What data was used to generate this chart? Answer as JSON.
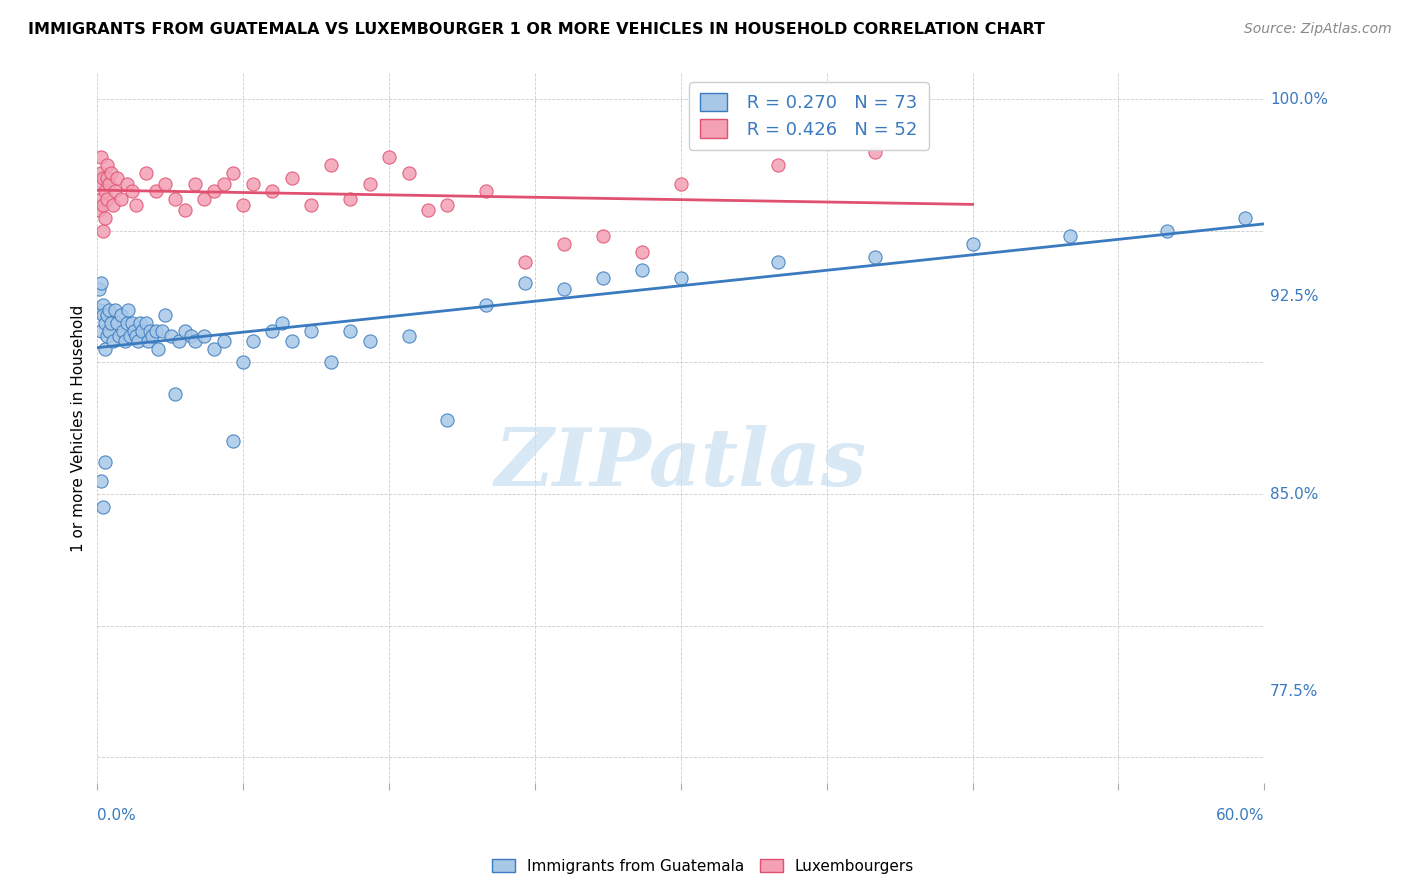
{
  "title": "IMMIGRANTS FROM GUATEMALA VS LUXEMBOURGER 1 OR MORE VEHICLES IN HOUSEHOLD CORRELATION CHART",
  "source": "Source: ZipAtlas.com",
  "legend_label1": "Immigrants from Guatemala",
  "legend_label2": "Luxembourgers",
  "R1": 0.27,
  "N1": 73,
  "R2": 0.426,
  "N2": 52,
  "color_blue": "#a8c8e8",
  "color_pink": "#f4a0b5",
  "color_blue_line": "#3a7abf",
  "color_pink_line": "#e05070",
  "watermark_color": "#c8dff0",
  "xlim": [
    0,
    0.6
  ],
  "ylim": [
    0.74,
    1.01
  ],
  "yticks": [
    0.775,
    0.85,
    0.925,
    1.0
  ],
  "ytick_labels": [
    "77.5%",
    "85.0%",
    "92.5%",
    "100.0%"
  ],
  "xtick_labels_pos": [
    0.0,
    0.6
  ],
  "xtick_labels": [
    "0.0%",
    "60.0%"
  ],
  "blue_x": [
    0.001,
    0.001,
    0.002,
    0.002,
    0.003,
    0.003,
    0.004,
    0.004,
    0.005,
    0.005,
    0.006,
    0.006,
    0.007,
    0.008,
    0.009,
    0.01,
    0.011,
    0.012,
    0.013,
    0.014,
    0.015,
    0.016,
    0.017,
    0.018,
    0.019,
    0.02,
    0.021,
    0.022,
    0.023,
    0.025,
    0.026,
    0.027,
    0.028,
    0.03,
    0.031,
    0.033,
    0.035,
    0.038,
    0.04,
    0.042,
    0.045,
    0.048,
    0.05,
    0.055,
    0.06,
    0.065,
    0.07,
    0.075,
    0.08,
    0.09,
    0.095,
    0.1,
    0.11,
    0.12,
    0.13,
    0.14,
    0.16,
    0.18,
    0.2,
    0.22,
    0.24,
    0.26,
    0.28,
    0.3,
    0.35,
    0.4,
    0.45,
    0.5,
    0.55,
    0.59,
    0.002,
    0.003,
    0.004
  ],
  "blue_y": [
    0.928,
    0.92,
    0.912,
    0.93,
    0.922,
    0.918,
    0.915,
    0.905,
    0.91,
    0.918,
    0.92,
    0.912,
    0.915,
    0.908,
    0.92,
    0.915,
    0.91,
    0.918,
    0.912,
    0.908,
    0.915,
    0.92,
    0.91,
    0.915,
    0.912,
    0.91,
    0.908,
    0.915,
    0.912,
    0.915,
    0.908,
    0.912,
    0.91,
    0.912,
    0.905,
    0.912,
    0.918,
    0.91,
    0.888,
    0.908,
    0.912,
    0.91,
    0.908,
    0.91,
    0.905,
    0.908,
    0.87,
    0.9,
    0.908,
    0.912,
    0.915,
    0.908,
    0.912,
    0.9,
    0.912,
    0.908,
    0.91,
    0.878,
    0.922,
    0.93,
    0.928,
    0.932,
    0.935,
    0.932,
    0.938,
    0.94,
    0.945,
    0.948,
    0.95,
    0.955,
    0.855,
    0.845,
    0.862
  ],
  "pink_x": [
    0.001,
    0.001,
    0.002,
    0.002,
    0.002,
    0.003,
    0.003,
    0.003,
    0.004,
    0.004,
    0.005,
    0.005,
    0.005,
    0.006,
    0.007,
    0.008,
    0.009,
    0.01,
    0.012,
    0.015,
    0.018,
    0.02,
    0.025,
    0.03,
    0.035,
    0.04,
    0.045,
    0.05,
    0.055,
    0.06,
    0.065,
    0.07,
    0.075,
    0.08,
    0.09,
    0.1,
    0.11,
    0.12,
    0.13,
    0.14,
    0.15,
    0.16,
    0.17,
    0.18,
    0.2,
    0.22,
    0.24,
    0.26,
    0.28,
    0.3,
    0.35,
    0.4
  ],
  "pink_y": [
    0.958,
    0.968,
    0.972,
    0.962,
    0.978,
    0.97,
    0.96,
    0.95,
    0.965,
    0.955,
    0.97,
    0.962,
    0.975,
    0.968,
    0.972,
    0.96,
    0.965,
    0.97,
    0.962,
    0.968,
    0.965,
    0.96,
    0.972,
    0.965,
    0.968,
    0.962,
    0.958,
    0.968,
    0.962,
    0.965,
    0.968,
    0.972,
    0.96,
    0.968,
    0.965,
    0.97,
    0.96,
    0.975,
    0.962,
    0.968,
    0.978,
    0.972,
    0.958,
    0.96,
    0.965,
    0.938,
    0.945,
    0.948,
    0.942,
    0.968,
    0.975,
    0.98
  ]
}
